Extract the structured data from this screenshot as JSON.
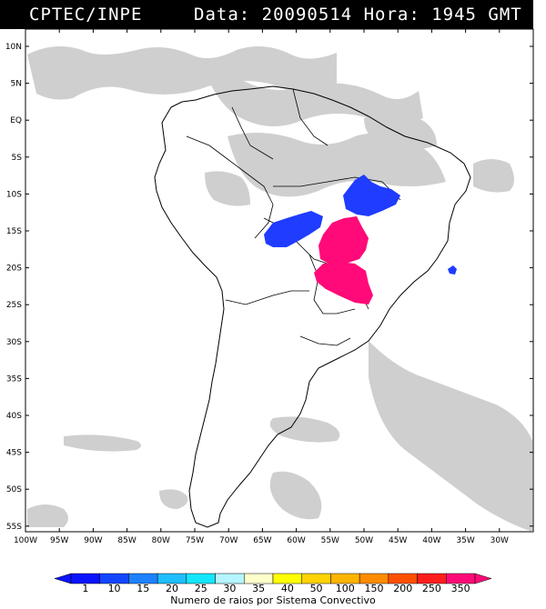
{
  "header": {
    "source": "CPTEC/INPE",
    "datetime": "Data: 20090514 Hora: 1945 GMT"
  },
  "map": {
    "lat_labels": [
      "10N",
      "5N",
      "EQ",
      "5S",
      "10S",
      "15S",
      "20S",
      "25S",
      "30S",
      "35S",
      "40S",
      "45S",
      "50S",
      "55S"
    ],
    "lon_labels": [
      "100W",
      "95W",
      "90W",
      "85W",
      "80W",
      "75W",
      "70W",
      "65W",
      "60W",
      "55W",
      "50W",
      "45W",
      "40W",
      "35W",
      "30W"
    ],
    "cloud_color": "#c8c8c8",
    "convective_systems": [
      {
        "label": "system-north-brazil",
        "color": "#1f3cff"
      },
      {
        "label": "system-west-brazil",
        "color": "#1f3cff"
      },
      {
        "label": "system-central-brazil",
        "color": "#ff0a78"
      },
      {
        "label": "system-south-brazil",
        "color": "#ff0a78"
      },
      {
        "label": "system-atlantic",
        "color": "#1f3cff"
      }
    ]
  },
  "colorbar": {
    "ticks": [
      "1",
      "10",
      "15",
      "20",
      "25",
      "30",
      "35",
      "40",
      "50",
      "100",
      "150",
      "200",
      "250",
      "350"
    ],
    "colors": [
      "#0a14ff",
      "#1446ff",
      "#1e82ff",
      "#1ebeff",
      "#14e6ff",
      "#b4f5ff",
      "#ffffcc",
      "#ffff00",
      "#ffd200",
      "#ffb400",
      "#ff8c00",
      "#ff5000",
      "#ff1e1e",
      "#ff0a78"
    ],
    "title": "Numero de raios por Sistema Convectivo"
  }
}
